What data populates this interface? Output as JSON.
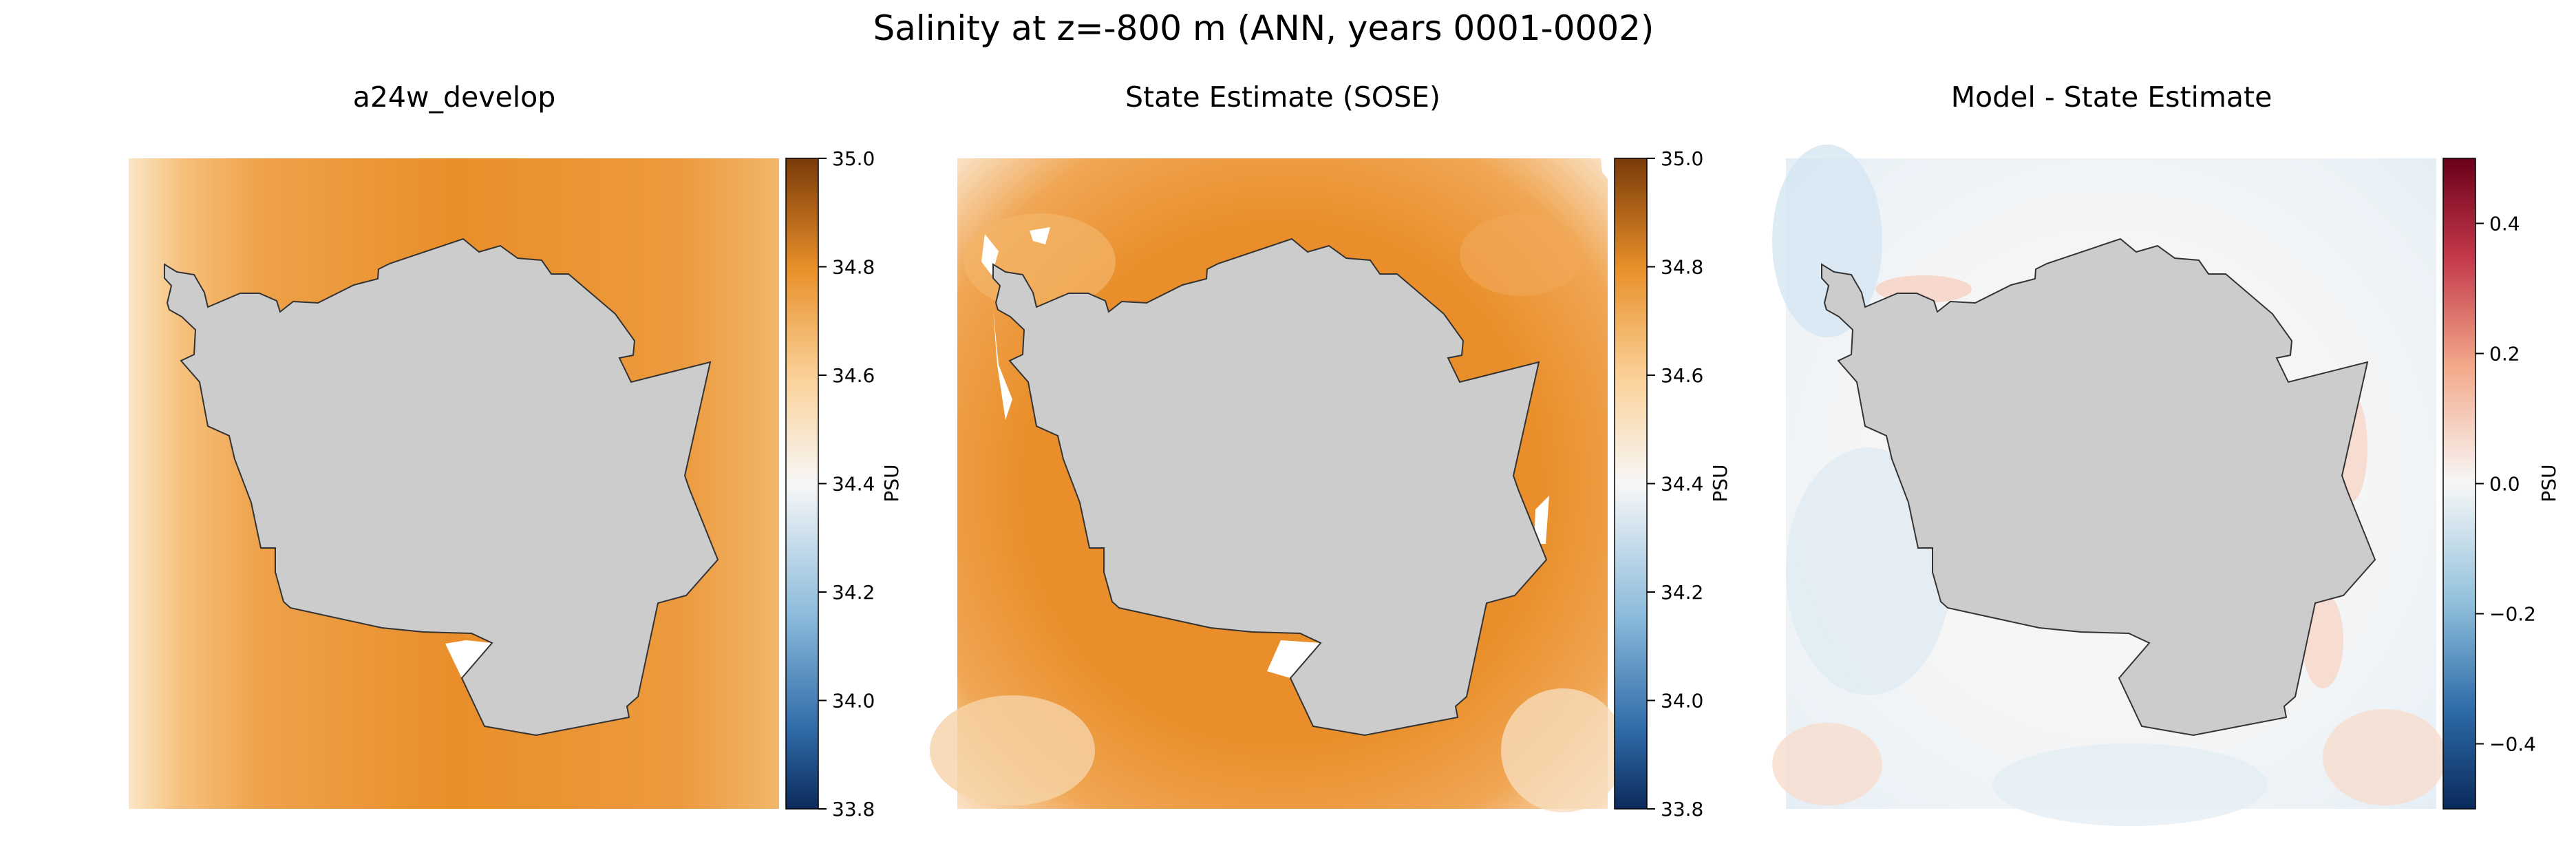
{
  "figure": {
    "title": "Salinity at z=-800 m (ANN, years 0001-0002)"
  },
  "colors": {
    "land": "#cccccc",
    "coast": "#333333",
    "orange": "#e98e2a",
    "light_orange": "#f7c98d",
    "white": "#ffffff",
    "blue_light": "#cfe3f0",
    "red_light": "#f6d6c8"
  },
  "chart_data": [
    {
      "type": "heatmap",
      "title": "a24w_develop",
      "colorbar": {
        "label": "PSU",
        "colormap": "PuOr_r",
        "range": [
          33.8,
          35.0
        ],
        "ticks": [
          33.8,
          34.0,
          34.2,
          34.4,
          34.6,
          34.8,
          35.0
        ],
        "tick_labels": [
          "33.8",
          "34.0",
          "34.2",
          "34.4",
          "34.6",
          "34.8",
          "35.0"
        ]
      },
      "field_description_value": 34.85
    },
    {
      "type": "heatmap",
      "title": "State Estimate (SOSE)",
      "colorbar": {
        "label": "PSU",
        "colormap": "PuOr_r",
        "range": [
          33.8,
          35.0
        ],
        "ticks": [
          33.8,
          34.0,
          34.2,
          34.4,
          34.6,
          34.8,
          35.0
        ],
        "tick_labels": [
          "33.8",
          "34.0",
          "34.2",
          "34.4",
          "34.6",
          "34.8",
          "35.0"
        ]
      },
      "field_description_value": 34.82
    },
    {
      "type": "heatmap",
      "title": "Model - State Estimate",
      "colorbar": {
        "label": "PSU",
        "colormap": "RdBu_r",
        "range": [
          -0.5,
          0.5
        ],
        "ticks": [
          -0.4,
          -0.2,
          0.0,
          0.2,
          0.4
        ],
        "tick_labels": [
          "−0.4",
          "−0.2",
          "0.0",
          "0.2",
          "0.4"
        ]
      },
      "field_description_value": 0.0
    }
  ]
}
